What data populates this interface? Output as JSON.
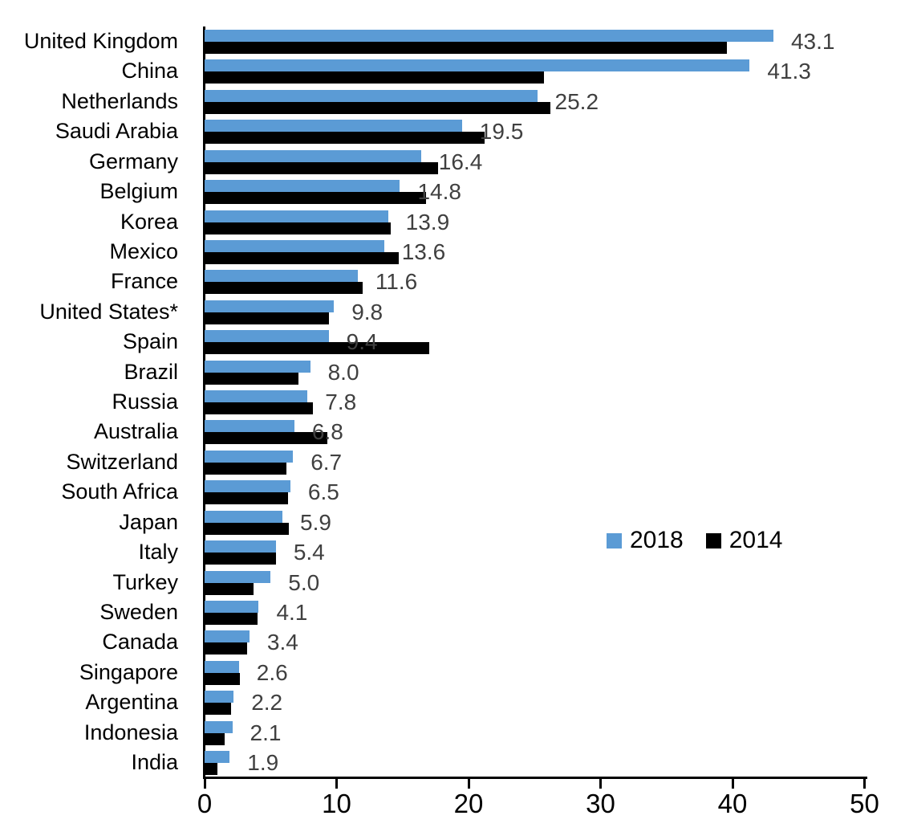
{
  "chart_data": {
    "type": "bar",
    "orientation": "horizontal",
    "title": "",
    "xlabel": "",
    "ylabel": "",
    "xlim": [
      0,
      50
    ],
    "x_ticks": [
      "0",
      "10",
      "20",
      "30",
      "40",
      "50"
    ],
    "grid": "off",
    "legend_position": "middle-right",
    "categories": [
      "United Kingdom",
      "China",
      "Netherlands",
      "Saudi Arabia",
      "Germany",
      "Belgium",
      "Korea",
      "Mexico",
      "France",
      "United States*",
      "Spain",
      "Brazil",
      "Russia",
      "Australia",
      "Switzerland",
      "South Africa",
      "Japan",
      "Italy",
      "Turkey",
      "Sweden",
      "Canada",
      "Singapore",
      "Argentina",
      "Indonesia",
      "India"
    ],
    "series": [
      {
        "name": "2018",
        "color": "#5B9BD5",
        "data_labels_shown": true,
        "values": [
          43.1,
          41.3,
          25.2,
          19.5,
          16.4,
          14.8,
          13.9,
          13.6,
          11.6,
          9.8,
          9.4,
          8.0,
          7.8,
          6.8,
          6.7,
          6.5,
          5.9,
          5.4,
          5.0,
          4.1,
          3.4,
          2.6,
          2.2,
          2.1,
          1.9
        ]
      },
      {
        "name": "2014",
        "color": "#000000",
        "data_labels_shown": false,
        "values_estimated_from_pixels": true,
        "values": [
          39.6,
          25.7,
          26.2,
          21.2,
          17.7,
          16.8,
          14.1,
          14.7,
          12.0,
          9.4,
          17.0,
          7.1,
          8.2,
          9.3,
          6.2,
          6.3,
          6.4,
          5.4,
          3.7,
          4.0,
          3.2,
          2.7,
          2.0,
          1.5,
          1.0
        ]
      }
    ],
    "data_labels": [
      "43.1",
      "41.3",
      "25.2",
      "19.5",
      "16.4",
      "14.8",
      "13.9",
      "13.6",
      "11.6",
      "9.8",
      "9.4",
      "8.0",
      "7.8",
      "6.8",
      "6.7",
      "6.5",
      "5.9",
      "5.4",
      "5.0",
      "4.1",
      "3.4",
      "2.6",
      "2.2",
      "2.1",
      "1.9"
    ],
    "data_label_color": "#404040",
    "axis_color": "#000000"
  }
}
